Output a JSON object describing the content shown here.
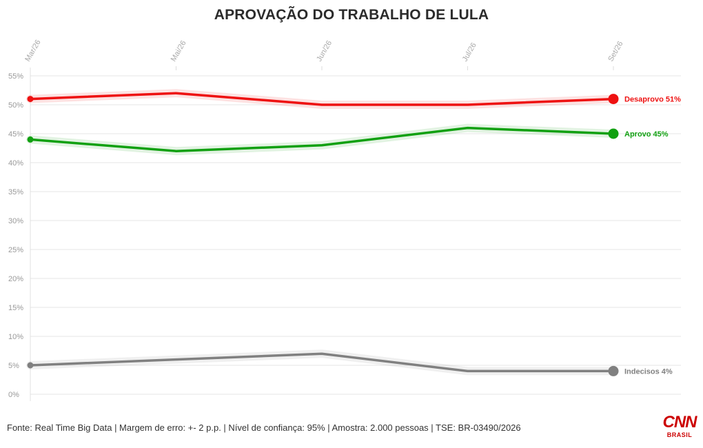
{
  "chart_data": {
    "type": "line",
    "title": "APROVAÇÃO DO TRABALHO DE LULA",
    "x": [
      "Mar/26",
      "Mai/26",
      "Jun/26",
      "Jul/26",
      "Set/26"
    ],
    "ylim": [
      0,
      55
    ],
    "y_ticks": [
      "0%",
      "5%",
      "10%",
      "15%",
      "20%",
      "25%",
      "30%",
      "35%",
      "40%",
      "45%",
      "50%",
      "55%"
    ],
    "grid": true,
    "series": [
      {
        "name": "Desaprovo",
        "label": "Desaprovo 51%",
        "color": "#ee1111",
        "values": [
          51,
          52,
          50,
          50,
          51
        ]
      },
      {
        "name": "Aprovo",
        "label": "Aprovo 45%",
        "color": "#11a011",
        "values": [
          44,
          42,
          43,
          46,
          45
        ]
      },
      {
        "name": "Indecisos",
        "label": "Indecisos 4%",
        "color": "#808080",
        "values": [
          5,
          6,
          7,
          4,
          4
        ]
      }
    ]
  },
  "footer": {
    "source": "Fonte: Real Time Big Data | Margem de erro: +- 2 p.p. | Nível de confiança: 95% | Amostra: 2.000 pessoas | TSE: BR-03490/2026"
  },
  "brand": {
    "logo_text": "CNN",
    "logo_sub": "BRASIL",
    "color": "#cc0000"
  }
}
